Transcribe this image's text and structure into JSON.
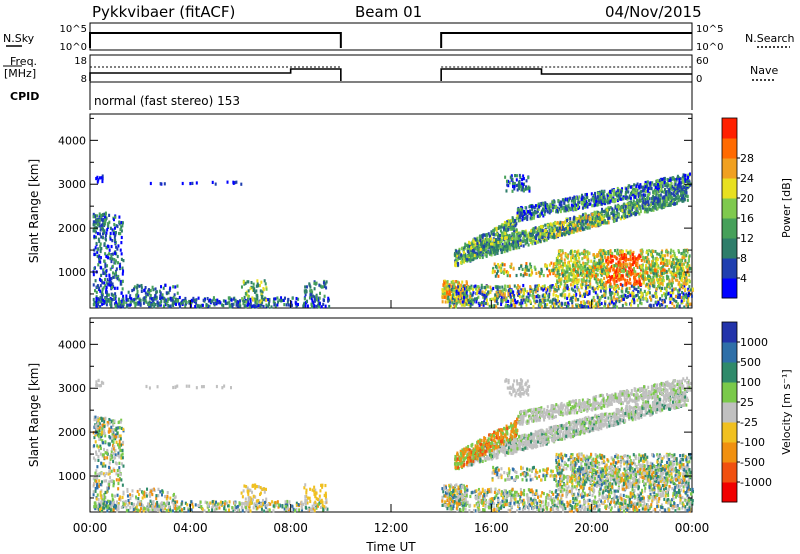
{
  "header": {
    "station": "Pykkvibaer (fitACF)",
    "beam": "Beam 01",
    "date": "04/Nov/2015"
  },
  "panels": {
    "nsky": {
      "label": "N.Sky",
      "right_label": "N.Search",
      "y_ticks_left": [
        "10^5",
        "10^0"
      ],
      "y_ticks_right": [
        "10^5",
        "10^0"
      ]
    },
    "freq": {
      "label_top": "Freq.",
      "label_bottom": "[MHz]",
      "right_label": "Nave",
      "y_ticks_left": [
        "18",
        "8"
      ],
      "y_ticks_right": [
        "60",
        "0"
      ]
    },
    "cpid": {
      "label": "CPID",
      "text": "normal (fast stereo) 153"
    }
  },
  "x_axis": {
    "label": "Time UT",
    "ticks": [
      "00:00",
      "04:00",
      "08:00",
      "12:00",
      "16:00",
      "20:00",
      "00:00"
    ]
  },
  "chart_data": [
    {
      "type": "heatmap",
      "panel": "power",
      "ylabel": "Slant Range [km]",
      "y_ticks": [
        1000,
        2000,
        3000,
        4000
      ],
      "ylim": [
        180,
        4600
      ],
      "xlim_hours": [
        0,
        24
      ],
      "colorbar_label": "Power [dB]",
      "colorbar_ticks": [
        "4",
        "8",
        "12",
        "16",
        "20",
        "24",
        "28"
      ],
      "colorbar_colors": [
        "#0000ff",
        "#1f3fb0",
        "#2e7d6a",
        "#46a05a",
        "#7fc94e",
        "#e8e020",
        "#f0a020",
        "#ff6a00",
        "#ff2000"
      ],
      "gap_hours": [
        10,
        14
      ]
    },
    {
      "type": "heatmap",
      "panel": "velocity",
      "ylabel": "Slant Range [km]",
      "y_ticks": [
        1000,
        2000,
        3000,
        4000
      ],
      "ylim": [
        180,
        4600
      ],
      "xlim_hours": [
        0,
        24
      ],
      "colorbar_label": "Velocity [m s⁻¹]",
      "colorbar_ticks": [
        "1000",
        "500",
        "100",
        "25",
        "-25",
        "-100",
        "-500",
        "-1000"
      ],
      "colorbar_colors": [
        "#2233aa",
        "#2e6fa8",
        "#2f8a6a",
        "#7ac94a",
        "#c0c0c0",
        "#f0c020",
        "#f09010",
        "#f05010",
        "#f00000"
      ],
      "gap_hours": [
        10,
        14
      ]
    }
  ]
}
